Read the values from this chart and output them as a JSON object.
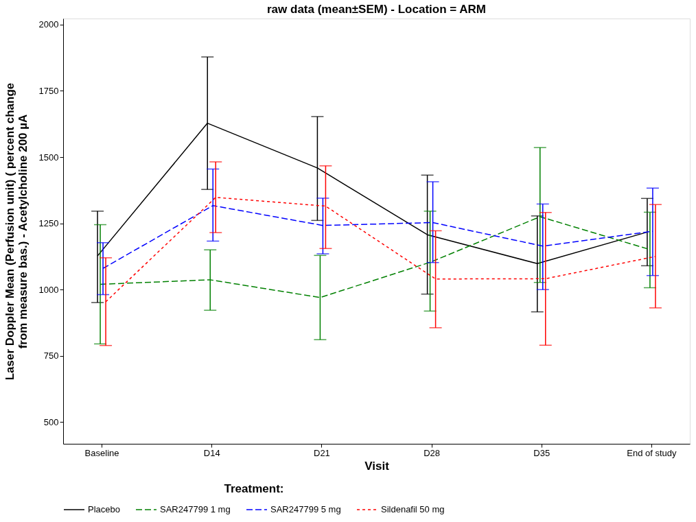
{
  "chart_data": {
    "type": "line",
    "title": "raw data (mean±SEM) - Location = ARM",
    "xlabel": "Visit",
    "ylabel": "Laser Doppler Mean (Perfusion unit) ( percent change\nfrom measure bas.) - Acetylcholine 200 µA",
    "legend_title": "Treatment:",
    "categories": [
      "Baseline",
      "D14",
      "D21",
      "D28",
      "D35",
      "End of study"
    ],
    "ylim": [
      418,
      2023
    ],
    "yticks": [
      500,
      750,
      1000,
      1250,
      1500,
      1750,
      2000
    ],
    "grid": false,
    "legend": "bottom",
    "marker": "none",
    "series": [
      {
        "name": "Placebo",
        "color": "#000000",
        "line_style": "solid",
        "values": [
          1127,
          1628,
          1459,
          1207,
          1098,
          1217
        ],
        "errors": [
          [
            951,
            1296
          ],
          [
            1378,
            1878
          ],
          [
            1261,
            1653
          ],
          [
            983,
            1432
          ],
          [
            916,
            1278
          ],
          [
            1090,
            1344
          ]
        ]
      },
      {
        "name": "SAR247799 1 mg",
        "color": "#008000",
        "line_style": "dashed",
        "values": [
          1020,
          1037,
          970,
          1103,
          1275,
          1151
        ],
        "errors": [
          [
            795,
            1245
          ],
          [
            922,
            1150
          ],
          [
            811,
            1129
          ],
          [
            919,
            1296
          ],
          [
            1027,
            1536
          ],
          [
            1007,
            1292
          ]
        ]
      },
      {
        "name": "SAR247799 5 mg",
        "color": "#0000ff",
        "line_style": "dashed",
        "values": [
          1080,
          1317,
          1242,
          1253,
          1164,
          1220
        ],
        "errors": [
          [
            981,
            1177
          ],
          [
            1183,
            1455
          ],
          [
            1135,
            1345
          ],
          [
            1102,
            1407
          ],
          [
            1000,
            1323
          ],
          [
            1053,
            1383
          ]
        ]
      },
      {
        "name": "Sildenafil 50 mg",
        "color": "#ff0000",
        "line_style": "dotted",
        "values": [
          954,
          1348,
          1315,
          1040,
          1041,
          1125
        ],
        "errors": [
          [
            789,
            1120
          ],
          [
            1215,
            1482
          ],
          [
            1155,
            1467
          ],
          [
            856,
            1222
          ],
          [
            790,
            1291
          ],
          [
            931,
            1321
          ]
        ]
      }
    ]
  }
}
